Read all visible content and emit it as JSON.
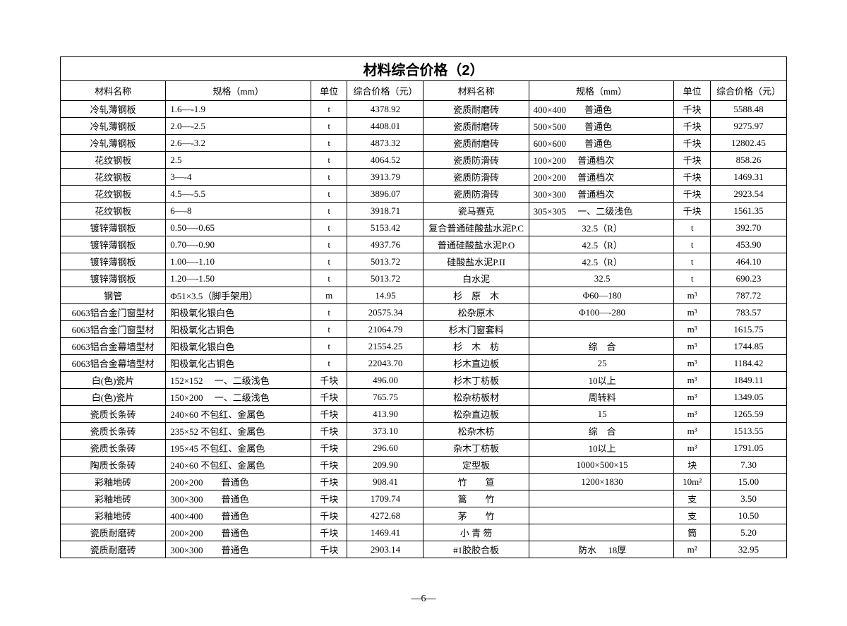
{
  "title": "材料综合价格（2）",
  "pageNum": "—6—",
  "headers": {
    "name": "材料名称",
    "spec": "规格（mm）",
    "unit": "单位",
    "price": "综合价格（元）"
  },
  "colWidths": {
    "name": 14.5,
    "spec": 20,
    "unit": 5,
    "price": 10.5
  },
  "leftRows": [
    {
      "name": "冷轧薄钢板",
      "spec": "1.6—-1.9",
      "unit": "t",
      "price": "4378.92"
    },
    {
      "name": "冷轧薄钢板",
      "spec": "2.0—-2.5",
      "unit": "t",
      "price": "4408.01"
    },
    {
      "name": "冷轧薄钢板",
      "spec": "2.6—-3.2",
      "unit": "t",
      "price": "4873.32"
    },
    {
      "name": "花纹钢板",
      "spec": "2.5",
      "unit": "t",
      "price": "4064.52"
    },
    {
      "name": "花纹钢板",
      "spec": "3—-4",
      "unit": "t",
      "price": "3913.79"
    },
    {
      "name": "花纹钢板",
      "spec": "4.5—-5.5",
      "unit": "t",
      "price": "3896.07"
    },
    {
      "name": "花纹钢板",
      "spec": "6—-8",
      "unit": "t",
      "price": "3918.71"
    },
    {
      "name": "镀锌薄钢板",
      "spec": "0.50—-0.65",
      "unit": "t",
      "price": "5153.42"
    },
    {
      "name": "镀锌薄钢板",
      "spec": "0.70—-0.90",
      "unit": "t",
      "price": "4937.76"
    },
    {
      "name": "镀锌薄钢板",
      "spec": "1.00—-1.10",
      "unit": "t",
      "price": "5013.72"
    },
    {
      "name": "镀锌薄钢板",
      "spec": "1.20—-1.50",
      "unit": "t",
      "price": "5013.72"
    },
    {
      "name": "钢管",
      "spec": "Φ51×3.5（脚手架用）",
      "unit": "m",
      "price": "14.95"
    },
    {
      "name": "6063铝合金门窗型材",
      "spec": "阳极氧化银白色",
      "unit": "t",
      "price": "20575.34"
    },
    {
      "name": "6063铝合金门窗型材",
      "spec": "阳极氧化古铜色",
      "unit": "t",
      "price": "21064.79"
    },
    {
      "name": "6063铝合金幕墙型材",
      "spec": "阳极氧化银白色",
      "unit": "t",
      "price": "21554.25"
    },
    {
      "name": "6063铝合金幕墙型材",
      "spec": "阳极氧化古铜色",
      "unit": "t",
      "price": "22043.70"
    },
    {
      "name": "白(色)瓷片",
      "spec": "152×152　 一、二级浅色",
      "unit": "千块",
      "price": "496.00"
    },
    {
      "name": "白(色)瓷片",
      "spec": "150×200　 一、二级浅色",
      "unit": "千块",
      "price": "765.75"
    },
    {
      "name": "瓷质长条砖",
      "spec": "240×60 不包红、金属色",
      "unit": "千块",
      "price": "413.90"
    },
    {
      "name": "瓷质长条砖",
      "spec": "235×52 不包红、金属色",
      "unit": "千块",
      "price": "373.10"
    },
    {
      "name": "瓷质长条砖",
      "spec": "195×45 不包红、金属色",
      "unit": "千块",
      "price": "296.60"
    },
    {
      "name": "陶质长条砖",
      "spec": "240×60 不包红、金属色",
      "unit": "千块",
      "price": "209.90"
    },
    {
      "name": "彩釉地砖",
      "spec": "200×200　　普通色",
      "unit": "千块",
      "price": "908.41"
    },
    {
      "name": "彩釉地砖",
      "spec": "300×300　　普通色",
      "unit": "千块",
      "price": "1709.74"
    },
    {
      "name": "彩釉地砖",
      "spec": "400×400　　普通色",
      "unit": "千块",
      "price": "4272.68"
    },
    {
      "name": "瓷质耐磨砖",
      "spec": "200×200　　普通色",
      "unit": "千块",
      "price": "1469.41"
    },
    {
      "name": "瓷质耐磨砖",
      "spec": "300×300　　普通色",
      "unit": "千块",
      "price": "2903.14"
    }
  ],
  "rightRows": [
    {
      "name": "瓷质耐磨砖",
      "spec": "400×400　　普通色",
      "unit": "千块",
      "price": "5588.48"
    },
    {
      "name": "瓷质耐磨砖",
      "spec": "500×500　　普通色",
      "unit": "千块",
      "price": "9275.97"
    },
    {
      "name": "瓷质耐磨砖",
      "spec": "600×600　　普通色",
      "unit": "千块",
      "price": "12802.45"
    },
    {
      "name": "瓷质防滑砖",
      "spec": "100×200　 普通档次",
      "unit": "千块",
      "price": "858.26"
    },
    {
      "name": "瓷质防滑砖",
      "spec": "200×200　 普通档次",
      "unit": "千块",
      "price": "1469.31"
    },
    {
      "name": "瓷质防滑砖",
      "spec": "300×300　 普通档次",
      "unit": "千块",
      "price": "2923.54"
    },
    {
      "name": "瓷马赛克",
      "spec": "305×305　 一、二级浅色",
      "unit": "千块",
      "price": "1561.35"
    },
    {
      "name": "复合普通硅酸盐水泥P.C",
      "spec": "32.5（R）",
      "specCenter": true,
      "unit": "t",
      "price": "392.70"
    },
    {
      "name": "普通硅酸盐水泥P.O",
      "spec": "42.5（R）",
      "specCenter": true,
      "unit": "t",
      "price": "453.90"
    },
    {
      "name": "硅酸盐水泥P.II",
      "spec": "42.5（R）",
      "specCenter": true,
      "unit": "t",
      "price": "464.10"
    },
    {
      "name": "白水泥",
      "spec": "32.5",
      "specCenter": true,
      "unit": "t",
      "price": "690.23"
    },
    {
      "name": "杉　原　木",
      "spec": "Φ60—180",
      "specCenter": true,
      "unit": "m³",
      "price": "787.72"
    },
    {
      "name": "松杂原木",
      "spec": "Φ100—-280",
      "specCenter": true,
      "unit": "m³",
      "price": "783.57"
    },
    {
      "name": "杉木门窗套料",
      "spec": "",
      "unit": "m³",
      "price": "1615.75"
    },
    {
      "name": "杉　木　枋",
      "spec": "综　合",
      "specCenter": true,
      "unit": "m³",
      "price": "1744.85"
    },
    {
      "name": "杉木直边板",
      "spec": "25",
      "specCenter": true,
      "unit": "m³",
      "price": "1184.42"
    },
    {
      "name": "杉木丁枋板",
      "spec": "10以上",
      "specCenter": true,
      "unit": "m³",
      "price": "1849.11"
    },
    {
      "name": "松杂枋板材",
      "spec": "周转料",
      "specCenter": true,
      "unit": "m³",
      "price": "1349.05"
    },
    {
      "name": "松杂直边板",
      "spec": "15",
      "specCenter": true,
      "unit": "m³",
      "price": "1265.59"
    },
    {
      "name": "松杂木枋",
      "spec": "综　合",
      "specCenter": true,
      "unit": "m³",
      "price": "1513.55"
    },
    {
      "name": "杂木丁枋板",
      "spec": "10以上",
      "specCenter": true,
      "unit": "m³",
      "price": "1791.05"
    },
    {
      "name": "定型板",
      "spec": "1000×500×15",
      "specCenter": true,
      "unit": "块",
      "price": "7.30"
    },
    {
      "name": "竹　　笪",
      "spec": "1200×1830",
      "specCenter": true,
      "unit": "10m²",
      "price": "15.00"
    },
    {
      "name": "篙　　竹",
      "spec": "",
      "unit": "支",
      "price": "3.50"
    },
    {
      "name": "茅　　竹",
      "spec": "",
      "unit": "支",
      "price": "10.50"
    },
    {
      "name": "小 青 笏",
      "spec": "",
      "unit": "筒",
      "price": "5.20"
    },
    {
      "name": "#1胶胶合板",
      "spec": "防水　 18厚",
      "specCenter": true,
      "unit": "m²",
      "price": "32.95"
    }
  ]
}
